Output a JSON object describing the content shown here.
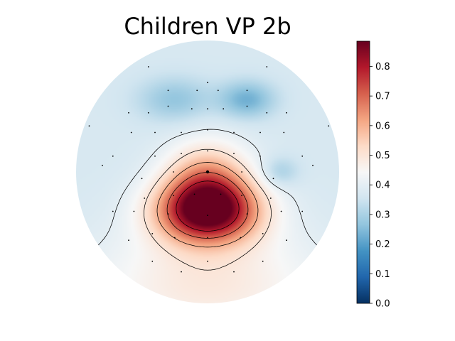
{
  "chart_data": {
    "type": "heatmap",
    "title": "Children VP 2b",
    "xlabel": "",
    "ylabel": "",
    "colorbar": {
      "colormap": "RdBu_r",
      "range": [
        0.0,
        0.885
      ],
      "ticks": [
        0.0,
        0.1,
        0.2,
        0.3,
        0.4,
        0.5,
        0.6,
        0.7,
        0.8
      ],
      "tick_labels": [
        "0.0",
        "0.1",
        "0.2",
        "0.3",
        "0.4",
        "0.5",
        "0.6",
        "0.7",
        "0.8"
      ],
      "placement": "right"
    },
    "contour_levels": [
      0.4,
      0.5,
      0.6,
      0.7,
      0.8
    ],
    "topography": {
      "background_value": 0.37,
      "sources": [
        {
          "name": "posterior-central maximum",
          "x": 0.0,
          "y": -0.3,
          "sx": 0.27,
          "sy": 0.17,
          "amp": 0.52
        },
        {
          "name": "central spread",
          "x": 0.0,
          "y": -0.05,
          "sx": 0.22,
          "sy": 0.2,
          "amp": 0.22
        },
        {
          "name": "occipital rise",
          "x": 0.0,
          "y": -0.85,
          "sx": 0.6,
          "sy": 0.3,
          "amp": 0.12
        },
        {
          "name": "frontal-left minimum",
          "x": -0.25,
          "y": 0.55,
          "sx": 0.2,
          "sy": 0.12,
          "amp": -0.1
        },
        {
          "name": "frontal-right minimum",
          "x": 0.3,
          "y": 0.55,
          "sx": 0.15,
          "sy": 0.1,
          "amp": -0.14
        },
        {
          "name": "right-temporal minimum",
          "x": 0.55,
          "y": 0.0,
          "sx": 0.1,
          "sy": 0.08,
          "amp": -0.08
        }
      ]
    },
    "sensors": {
      "count": 64,
      "marked_sensor": {
        "x": 0.0,
        "y": 0.0
      }
    }
  }
}
